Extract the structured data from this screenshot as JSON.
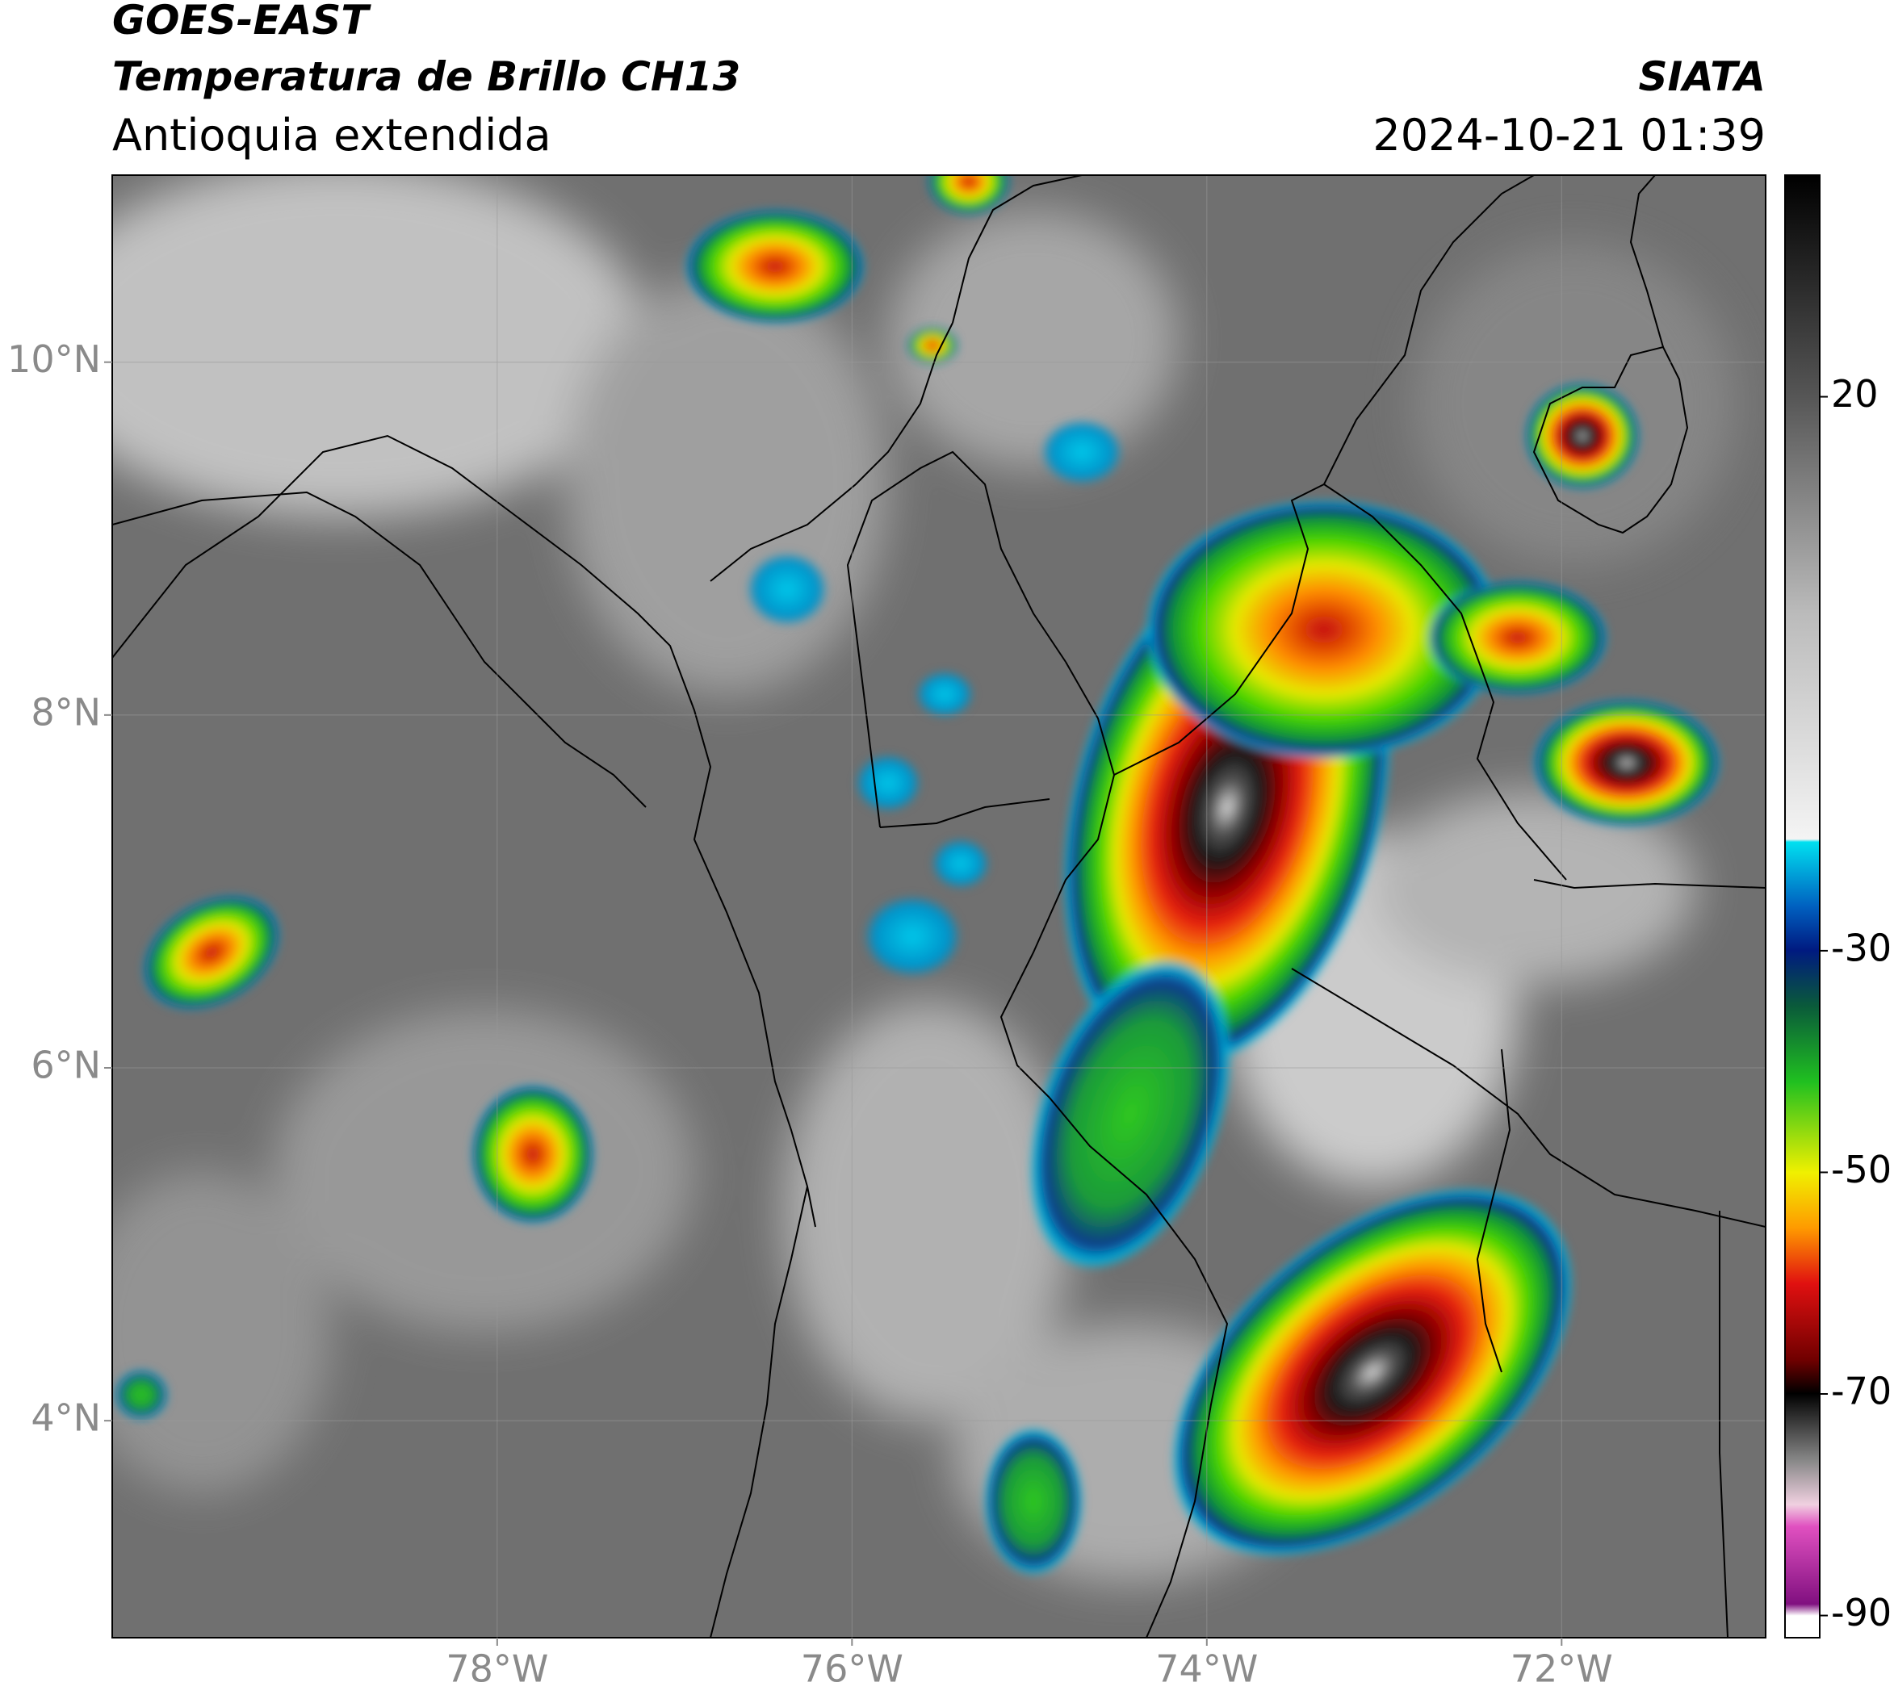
{
  "header": {
    "title": "GOES-EAST",
    "subtitle": "Temperatura de Brillo CH13",
    "region": "Antioquia extendida",
    "source": "SIATA",
    "datetime": "2024-10-21 01:39"
  },
  "map": {
    "xlim": [
      -80.17,
      -70.85
    ],
    "ylim": [
      2.77,
      11.06
    ],
    "xticks": [
      {
        "value": -78,
        "label": "78°W"
      },
      {
        "value": -76,
        "label": "76°W"
      },
      {
        "value": -74,
        "label": "74°W"
      },
      {
        "value": -72,
        "label": "72°W"
      }
    ],
    "yticks": [
      {
        "value": 4,
        "label": "4°N"
      },
      {
        "value": 6,
        "label": "6°N"
      },
      {
        "value": 8,
        "label": "8°N"
      },
      {
        "value": 10,
        "label": "10°N"
      }
    ],
    "grid": true
  },
  "colorbar": {
    "lim": [
      -92,
      40
    ],
    "ticks": [
      20,
      -30,
      -50,
      -70,
      -90
    ]
  }
}
